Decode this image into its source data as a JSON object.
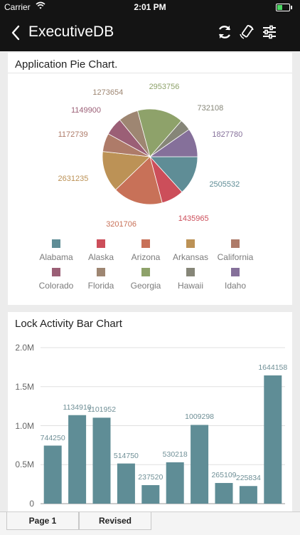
{
  "status_bar": {
    "carrier": "Carrier",
    "time": "2:01 PM"
  },
  "nav": {
    "title": "ExecutiveDB",
    "icons": [
      "back-chevron",
      "refresh",
      "rotate-phone",
      "sliders"
    ]
  },
  "pie_card": {
    "title": "Application Pie Chart."
  },
  "bar_card": {
    "title": "Lock Activity Bar Chart"
  },
  "tabs": [
    {
      "label": "Page 1",
      "selected": true
    },
    {
      "label": "Revised",
      "selected": false
    }
  ],
  "chart_data": [
    {
      "type": "pie",
      "title": "Application Pie Chart.",
      "categories": [
        "Alabama",
        "Alaska",
        "Arizona",
        "Arkansas",
        "California",
        "Colorado",
        "Florida",
        "Georgia",
        "Hawaii",
        "Idaho"
      ],
      "values": [
        2505532,
        1435965,
        3201706,
        2631235,
        1172739,
        1149900,
        1273654,
        2953756,
        732108,
        1827780
      ],
      "colors": [
        "#5f8d96",
        "#cc4e5a",
        "#c87158",
        "#bc9256",
        "#ae7b69",
        "#9b5f76",
        "#9e8672",
        "#8ea26a",
        "#868678",
        "#85709a"
      ],
      "legend": "bottom"
    },
    {
      "type": "bar",
      "title": "Lock Activity Bar Chart",
      "values": [
        744250,
        1134910,
        1101952,
        514750,
        237520,
        530218,
        1009298,
        265109,
        225834,
        1644158
      ],
      "labels": [
        "744250",
        "1134910",
        "1101952",
        "514750",
        "237520",
        "530218",
        "1009298",
        "265109",
        "225834",
        "1644158"
      ],
      "yticks": [
        "0",
        "0.5M",
        "1.0M",
        "1.5M",
        "2.0M"
      ],
      "ylim": [
        0,
        2000000
      ],
      "color": "#5f8d96",
      "grid": true
    }
  ]
}
